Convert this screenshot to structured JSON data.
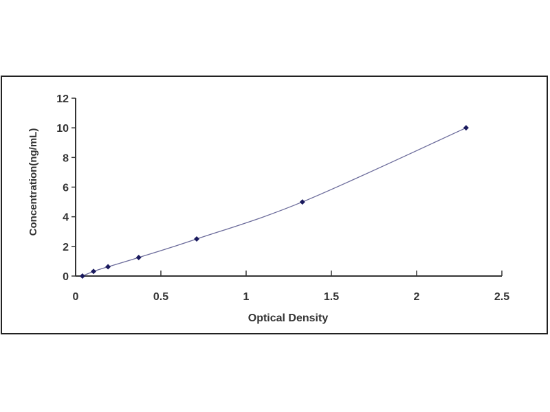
{
  "chart_data": {
    "type": "scatter",
    "title": "",
    "xlabel": "Optical Density",
    "ylabel": "Concentration(ng/mL)",
    "xlim": [
      0,
      2.5
    ],
    "ylim": [
      0,
      12
    ],
    "xticks": [
      "0",
      "0.5",
      "1",
      "1.5",
      "2",
      "2.5"
    ],
    "yticks": [
      "0",
      "2",
      "4",
      "6",
      "8",
      "10",
      "12"
    ],
    "grid": false,
    "points": [
      {
        "x": 0.04,
        "y": 0
      },
      {
        "x": 0.105,
        "y": 0.312
      },
      {
        "x": 0.19,
        "y": 0.625
      },
      {
        "x": 0.37,
        "y": 1.25
      },
      {
        "x": 0.71,
        "y": 2.5
      },
      {
        "x": 1.33,
        "y": 5
      },
      {
        "x": 2.29,
        "y": 10
      }
    ],
    "fit_line": true,
    "colors": {
      "points": "#1a1a5e",
      "line": "#6a6a9a",
      "axis": "#333333"
    }
  }
}
